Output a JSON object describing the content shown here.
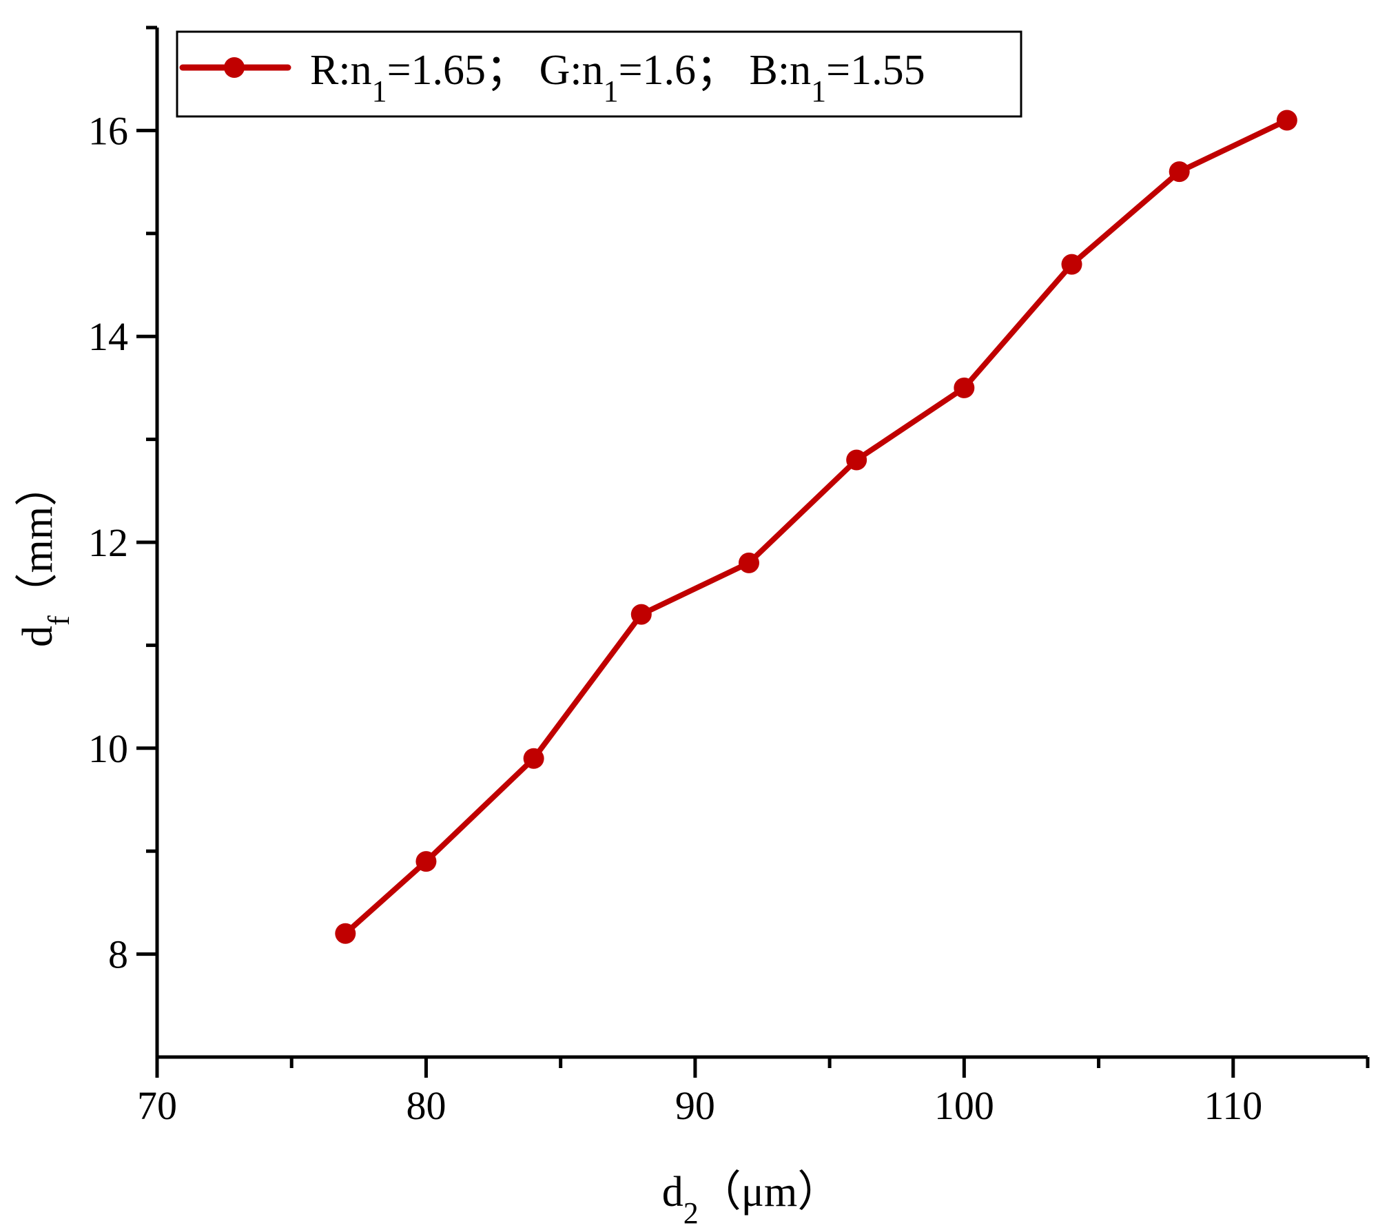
{
  "chart_data": {
    "type": "line",
    "xlabel": {
      "main": "d",
      "sub": "2",
      "unit": "（μm）"
    },
    "ylabel": {
      "main": "d",
      "sub": "f",
      "unit": "（mm）"
    },
    "xlim": [
      70,
      115
    ],
    "ylim": [
      7,
      17
    ],
    "x_major_ticks": [
      70,
      80,
      90,
      100,
      110
    ],
    "x_minor_ticks": [
      75,
      85,
      95,
      105,
      115
    ],
    "y_major_ticks": [
      8,
      10,
      12,
      14,
      16
    ],
    "y_minor_ticks": [
      9,
      11,
      13,
      15,
      17
    ],
    "grid": false,
    "legend_position": "top-left",
    "legend_parts": [
      {
        "a": "R:n",
        "sub": "1",
        "b": "=1.65；"
      },
      {
        "a": "G:n",
        "sub": "1",
        "b": "=1.6；"
      },
      {
        "a": "B:n",
        "sub": "1",
        "b": "=1.55"
      }
    ],
    "series": [
      {
        "color": "#c00000",
        "marker": "circle",
        "x": [
          77,
          80,
          84,
          88,
          92,
          96,
          100,
          104,
          108,
          112
        ],
        "y": [
          8.2,
          8.9,
          9.9,
          11.3,
          11.8,
          12.8,
          13.5,
          14.7,
          15.6,
          16.1
        ]
      }
    ]
  }
}
